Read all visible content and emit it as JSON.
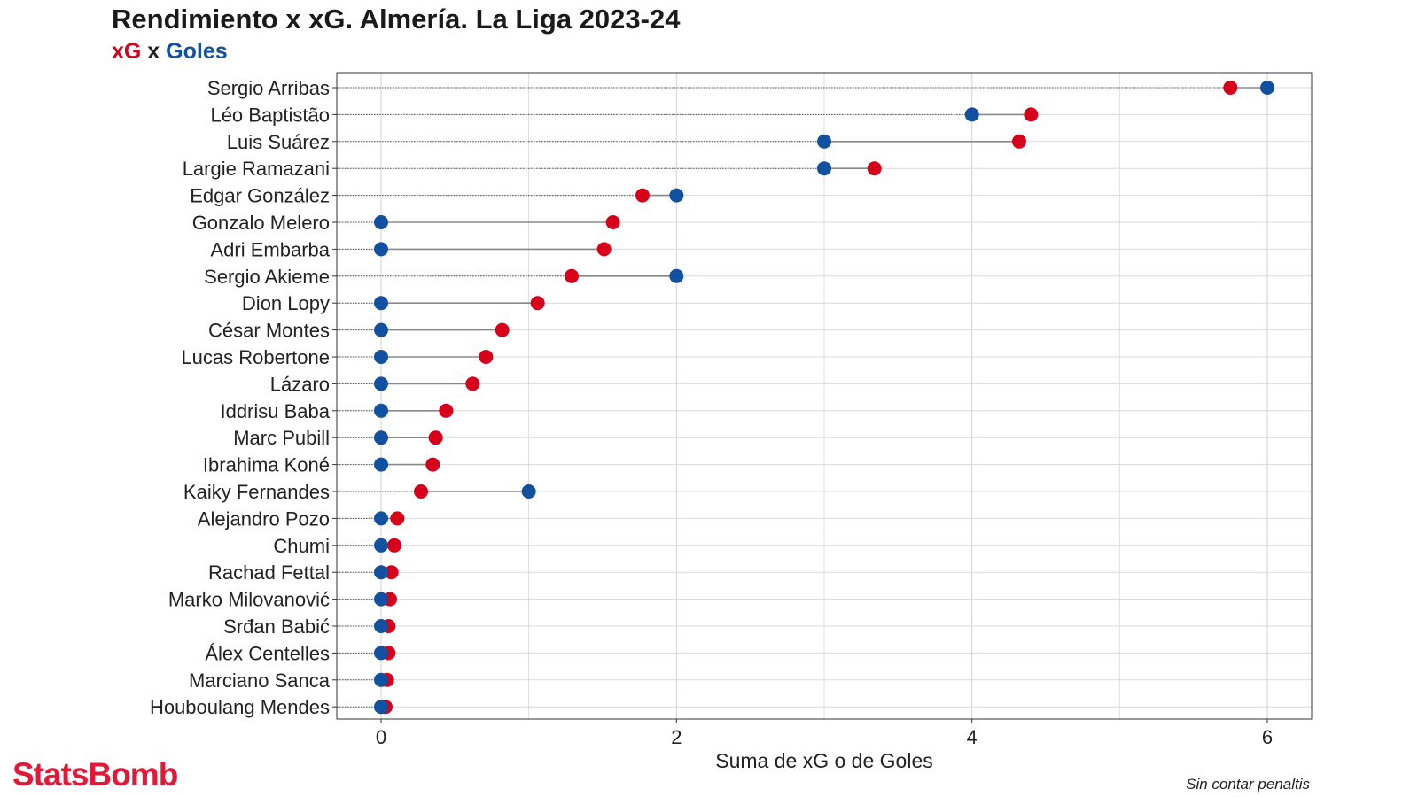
{
  "header": {
    "title": "Rendimiento x xG. Almería. La Liga 2023-24",
    "subtitle_xg": "xG",
    "subtitle_x": " x ",
    "subtitle_goles": "Goles"
  },
  "footer": {
    "logo": "StatsBomb",
    "caption": "Sin contar penaltis"
  },
  "colors": {
    "xg": "#d7001a",
    "goles": "#1250a0",
    "segment": "#888888",
    "grid": "#d9d9d9",
    "panel_border": "#333333"
  },
  "chart_data": {
    "type": "dumbbell",
    "title": "Rendimiento x xG. Almería. La Liga 2023-24",
    "xlabel": "Suma de xG o de Goles",
    "ylabel": "",
    "xlim": [
      -0.3,
      6.3
    ],
    "x_ticks": [
      0,
      2,
      4,
      6
    ],
    "grid": true,
    "series": [
      {
        "name": "xG",
        "color": "#d7001a"
      },
      {
        "name": "Goles",
        "color": "#1250a0"
      }
    ],
    "players": [
      {
        "name": "Sergio Arribas",
        "xg": 5.75,
        "goles": 6
      },
      {
        "name": "Léo Baptistão",
        "xg": 4.4,
        "goles": 4
      },
      {
        "name": "Luis Suárez",
        "xg": 4.32,
        "goles": 3
      },
      {
        "name": "Largie Ramazani",
        "xg": 3.34,
        "goles": 3
      },
      {
        "name": "Edgar González",
        "xg": 1.77,
        "goles": 2
      },
      {
        "name": "Gonzalo Melero",
        "xg": 1.57,
        "goles": 0
      },
      {
        "name": "Adri Embarba",
        "xg": 1.51,
        "goles": 0
      },
      {
        "name": "Sergio Akieme",
        "xg": 1.29,
        "goles": 2
      },
      {
        "name": "Dion Lopy",
        "xg": 1.06,
        "goles": 0
      },
      {
        "name": "César Montes",
        "xg": 0.82,
        "goles": 0
      },
      {
        "name": "Lucas Robertone",
        "xg": 0.71,
        "goles": 0
      },
      {
        "name": "Lázaro",
        "xg": 0.62,
        "goles": 0
      },
      {
        "name": "Iddrisu Baba",
        "xg": 0.44,
        "goles": 0
      },
      {
        "name": "Marc Pubill",
        "xg": 0.37,
        "goles": 0
      },
      {
        "name": "Ibrahima Koné",
        "xg": 0.35,
        "goles": 0
      },
      {
        "name": "Kaiky Fernandes",
        "xg": 0.27,
        "goles": 1
      },
      {
        "name": "Alejandro Pozo",
        "xg": 0.11,
        "goles": 0
      },
      {
        "name": "Chumi",
        "xg": 0.09,
        "goles": 0
      },
      {
        "name": "Rachad Fettal",
        "xg": 0.07,
        "goles": 0
      },
      {
        "name": "Marko Milovanović",
        "xg": 0.06,
        "goles": 0
      },
      {
        "name": "Srđan Babić",
        "xg": 0.05,
        "goles": 0
      },
      {
        "name": "Álex Centelles",
        "xg": 0.05,
        "goles": 0
      },
      {
        "name": "Marciano Sanca",
        "xg": 0.04,
        "goles": 0
      },
      {
        "name": "Houboulang Mendes",
        "xg": 0.03,
        "goles": 0
      }
    ]
  }
}
